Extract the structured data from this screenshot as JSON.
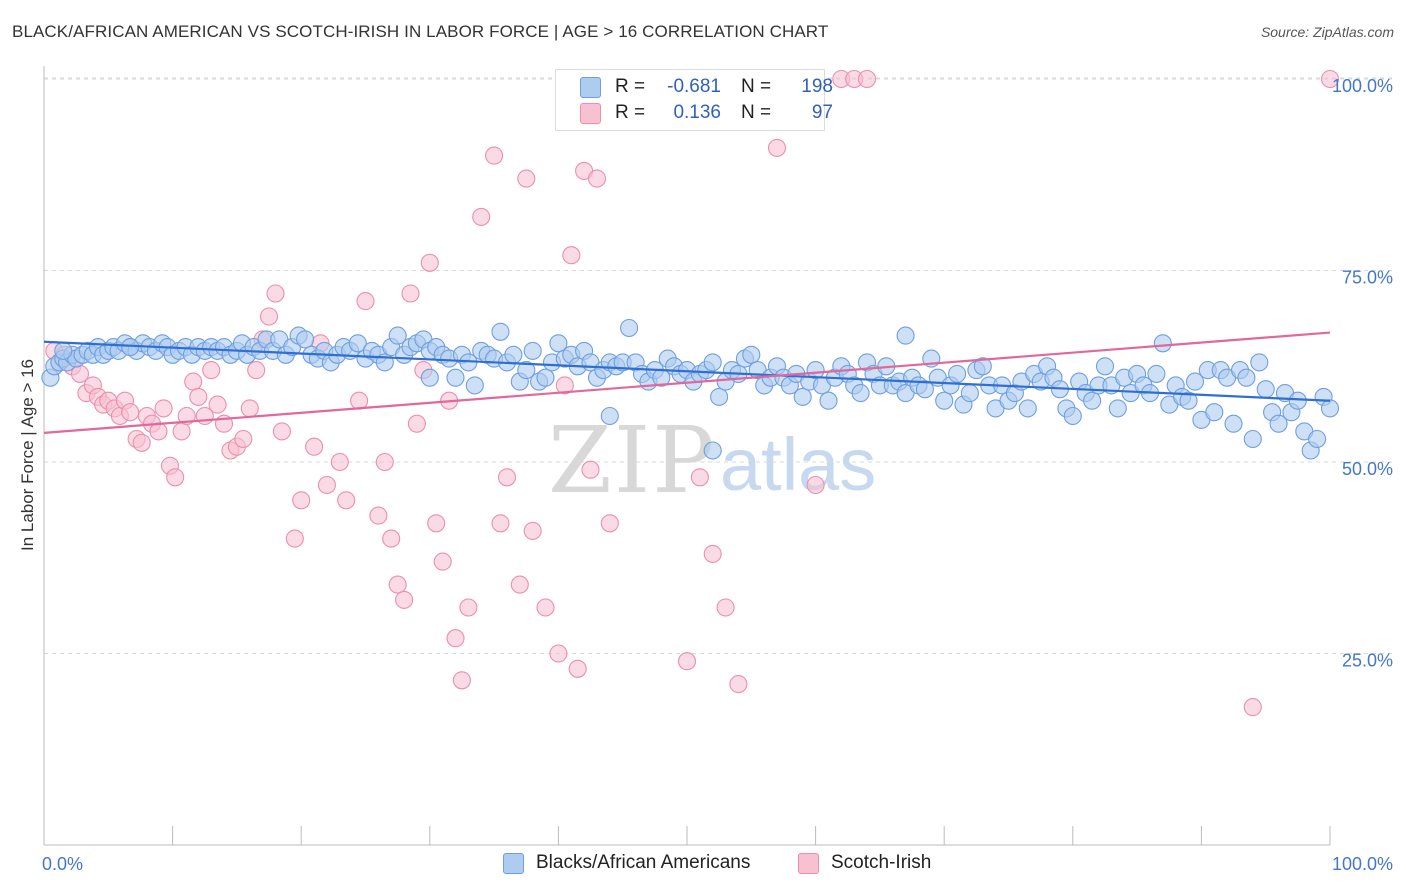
{
  "title": "BLACK/AFRICAN AMERICAN VS SCOTCH-IRISH IN LABOR FORCE | AGE > 16 CORRELATION CHART",
  "source": "Source: ZipAtlas.com",
  "watermark": {
    "zip": "ZIP",
    "atlas": "atlas"
  },
  "colors": {
    "blue_fill": "#aecbf0",
    "blue_stroke": "#6f9fe0",
    "blue_line": "#2f6fd1",
    "pink_fill": "#f7c1d2",
    "pink_stroke": "#ec8fac",
    "pink_line": "#e2679a",
    "tick_text": "#4477cc",
    "grid": "#d9d9d9"
  },
  "legend": {
    "rows": [
      {
        "r_label": "R =",
        "r_value": "-0.681",
        "n_label": "N =",
        "n_value": "198",
        "color": "blue"
      },
      {
        "r_label": "R =",
        "r_value": "0.136",
        "n_label": "N =",
        "n_value": "97",
        "color": "pink"
      }
    ]
  },
  "bottom_legend": [
    {
      "label": "Blacks/African Americans",
      "color": "blue"
    },
    {
      "label": "Scotch-Irish",
      "color": "pink"
    }
  ],
  "chart_data": {
    "type": "scatter",
    "title": "BLACK/AFRICAN AMERICAN VS SCOTCH-IRISH IN LABOR FORCE | AGE > 16 CORRELATION CHART",
    "xlabel": "",
    "ylabel": "In Labor Force | Age > 16",
    "xlim": [
      0,
      100
    ],
    "ylim": [
      0,
      103
    ],
    "x_tick_labels": [
      "0.0%",
      "100.0%"
    ],
    "y_ticks": [
      25,
      50,
      75,
      100
    ],
    "y_tick_labels": [
      "25.0%",
      "50.0%",
      "75.0%",
      "100.0%"
    ],
    "grid": true,
    "series": [
      {
        "name": "Blacks/African Americans",
        "color": "blue",
        "R": -0.681,
        "N": 198,
        "trend": {
          "x": [
            0,
            100
          ],
          "y": [
            65.7,
            58.0
          ]
        },
        "points": [
          [
            0.5,
            61
          ],
          [
            0.8,
            62.5
          ],
          [
            1.2,
            63
          ],
          [
            1.5,
            63.5
          ],
          [
            1.8,
            63
          ],
          [
            2.2,
            64
          ],
          [
            2.5,
            63.5
          ],
          [
            3,
            64
          ],
          [
            3.4,
            64.5
          ],
          [
            3.8,
            64
          ],
          [
            4.2,
            65
          ],
          [
            4.6,
            64
          ],
          [
            5,
            64.5
          ],
          [
            5.4,
            65
          ],
          [
            5.8,
            64.5
          ],
          [
            6.3,
            65.5
          ],
          [
            6.7,
            65
          ],
          [
            7.2,
            64.5
          ],
          [
            7.7,
            65.5
          ],
          [
            8.2,
            65
          ],
          [
            8.7,
            64.5
          ],
          [
            9.2,
            65.5
          ],
          [
            9.6,
            65
          ],
          [
            10,
            64
          ],
          [
            10.5,
            64.5
          ],
          [
            11,
            65
          ],
          [
            11.5,
            64
          ],
          [
            12,
            65
          ],
          [
            12.5,
            64.5
          ],
          [
            13,
            65
          ],
          [
            13.5,
            64.5
          ],
          [
            14,
            65
          ],
          [
            14.5,
            64
          ],
          [
            15,
            64.5
          ],
          [
            15.4,
            65.5
          ],
          [
            15.8,
            64
          ],
          [
            16.3,
            65
          ],
          [
            16.8,
            64.5
          ],
          [
            17.3,
            66
          ],
          [
            17.8,
            64.5
          ],
          [
            18.3,
            66
          ],
          [
            18.8,
            64
          ],
          [
            19.3,
            65
          ],
          [
            19.8,
            66.5
          ],
          [
            20.3,
            66
          ],
          [
            20.8,
            64
          ],
          [
            21.3,
            63.5
          ],
          [
            21.8,
            64.5
          ],
          [
            22.3,
            63
          ],
          [
            22.8,
            64
          ],
          [
            23.3,
            65
          ],
          [
            23.8,
            64.5
          ],
          [
            24.4,
            65.5
          ],
          [
            25,
            63.5
          ],
          [
            25.5,
            64.5
          ],
          [
            26,
            64
          ],
          [
            26.5,
            63
          ],
          [
            27,
            65
          ],
          [
            27.5,
            66.5
          ],
          [
            28,
            64
          ],
          [
            28.5,
            65
          ],
          [
            29,
            65.5
          ],
          [
            29.5,
            66
          ],
          [
            30,
            64.5
          ],
          [
            30.5,
            65
          ],
          [
            31,
            64
          ],
          [
            31.5,
            63.5
          ],
          [
            32,
            61
          ],
          [
            32.5,
            64
          ],
          [
            33,
            63
          ],
          [
            33.5,
            60
          ],
          [
            34,
            64.5
          ],
          [
            34.5,
            64
          ],
          [
            35,
            63.5
          ],
          [
            35.5,
            67
          ],
          [
            36,
            63
          ],
          [
            36.5,
            64
          ],
          [
            37,
            60.5
          ],
          [
            37.5,
            62
          ],
          [
            38,
            64.5
          ],
          [
            38.5,
            60.5
          ],
          [
            39,
            61
          ],
          [
            39.5,
            63
          ],
          [
            40,
            65.5
          ],
          [
            40.5,
            63.5
          ],
          [
            41,
            64
          ],
          [
            41.5,
            62.5
          ],
          [
            42,
            64.5
          ],
          [
            42.5,
            63
          ],
          [
            43,
            61
          ],
          [
            43.5,
            62
          ],
          [
            44,
            63
          ],
          [
            44.5,
            62.5
          ],
          [
            45,
            63
          ],
          [
            45.5,
            67.5
          ],
          [
            46,
            63
          ],
          [
            46.5,
            61.5
          ],
          [
            47,
            60.5
          ],
          [
            47.5,
            62
          ],
          [
            48,
            61
          ],
          [
            48.5,
            63.5
          ],
          [
            49,
            62.5
          ],
          [
            49.5,
            61.5
          ],
          [
            50,
            62
          ],
          [
            50.5,
            60.5
          ],
          [
            51,
            61.5
          ],
          [
            51.5,
            62
          ],
          [
            52,
            63
          ],
          [
            52.5,
            58.5
          ],
          [
            53,
            60.5
          ],
          [
            53.5,
            62
          ],
          [
            54,
            61.5
          ],
          [
            54.5,
            63.5
          ],
          [
            55,
            64
          ],
          [
            55.5,
            62
          ],
          [
            56,
            60
          ],
          [
            56.5,
            61
          ],
          [
            57,
            62.5
          ],
          [
            57.5,
            61
          ],
          [
            58,
            60
          ],
          [
            58.5,
            61.5
          ],
          [
            59,
            58.5
          ],
          [
            59.5,
            60.5
          ],
          [
            60,
            62
          ],
          [
            60.5,
            60
          ],
          [
            61,
            58
          ],
          [
            61.5,
            61
          ],
          [
            62,
            62.5
          ],
          [
            62.5,
            61.5
          ],
          [
            63,
            60
          ],
          [
            63.5,
            59
          ],
          [
            64,
            63
          ],
          [
            64.5,
            61.5
          ],
          [
            65,
            60
          ],
          [
            65.5,
            62.5
          ],
          [
            66,
            60
          ],
          [
            66.5,
            60.5
          ],
          [
            67,
            59
          ],
          [
            67.5,
            61
          ],
          [
            68,
            60
          ],
          [
            68.5,
            59.5
          ],
          [
            69,
            63.5
          ],
          [
            69.5,
            61
          ],
          [
            70,
            58
          ],
          [
            70.5,
            60
          ],
          [
            71,
            61.5
          ],
          [
            71.5,
            57.5
          ],
          [
            72,
            59
          ],
          [
            72.5,
            62
          ],
          [
            73,
            62.5
          ],
          [
            73.5,
            60
          ],
          [
            74,
            57
          ],
          [
            74.5,
            60
          ],
          [
            75,
            58
          ],
          [
            75.5,
            59
          ],
          [
            76,
            60.5
          ],
          [
            76.5,
            57
          ],
          [
            77,
            61.5
          ],
          [
            77.5,
            60.5
          ],
          [
            78,
            62.5
          ],
          [
            78.5,
            61
          ],
          [
            79,
            59.5
          ],
          [
            79.5,
            57
          ],
          [
            80,
            56
          ],
          [
            80.5,
            60.5
          ],
          [
            81,
            59
          ],
          [
            81.5,
            58
          ],
          [
            82,
            60
          ],
          [
            82.5,
            62.5
          ],
          [
            83,
            60
          ],
          [
            83.5,
            57
          ],
          [
            84,
            61
          ],
          [
            84.5,
            59
          ],
          [
            85,
            61.5
          ],
          [
            85.5,
            60
          ],
          [
            86,
            59
          ],
          [
            86.5,
            61.5
          ],
          [
            87,
            65.5
          ],
          [
            87.5,
            57.5
          ],
          [
            88,
            60
          ],
          [
            88.5,
            58.5
          ],
          [
            89,
            58
          ],
          [
            89.5,
            60.5
          ],
          [
            90,
            55.5
          ],
          [
            90.5,
            62
          ],
          [
            91,
            56.5
          ],
          [
            91.5,
            62
          ],
          [
            92,
            61
          ],
          [
            92.5,
            55
          ],
          [
            93,
            62
          ],
          [
            93.5,
            61
          ],
          [
            94,
            53
          ],
          [
            94.5,
            63
          ],
          [
            95,
            59.5
          ],
          [
            95.5,
            56.5
          ],
          [
            96,
            55
          ],
          [
            96.5,
            59
          ],
          [
            97,
            56.5
          ],
          [
            97.5,
            58
          ],
          [
            98,
            54
          ],
          [
            98.5,
            51.5
          ],
          [
            99,
            53
          ],
          [
            99.5,
            58.5
          ],
          [
            100,
            57
          ],
          [
            44,
            56
          ],
          [
            52,
            51.5
          ],
          [
            67,
            66.5
          ],
          [
            1.5,
            64.5
          ],
          [
            6.7,
            65
          ],
          [
            30,
            61
          ]
        ]
      },
      {
        "name": "Scotch-Irish",
        "color": "pink",
        "R": 0.136,
        "N": 97,
        "trend": {
          "x": [
            0,
            100
          ],
          "y": [
            53.8,
            66.9
          ]
        },
        "points": [
          [
            0.8,
            64.5
          ],
          [
            1.2,
            63
          ],
          [
            1.6,
            64
          ],
          [
            2.2,
            62.5
          ],
          [
            2.8,
            61.5
          ],
          [
            3.3,
            59
          ],
          [
            3.8,
            60
          ],
          [
            4.2,
            58.5
          ],
          [
            4.6,
            57.5
          ],
          [
            5,
            58
          ],
          [
            5.5,
            57
          ],
          [
            5.9,
            56
          ],
          [
            6.3,
            58
          ],
          [
            6.7,
            56.5
          ],
          [
            7.2,
            53
          ],
          [
            7.6,
            52.5
          ],
          [
            8,
            56
          ],
          [
            8.4,
            55
          ],
          [
            8.9,
            54
          ],
          [
            9.3,
            57
          ],
          [
            9.8,
            49.5
          ],
          [
            10.2,
            48
          ],
          [
            10.7,
            54
          ],
          [
            11.1,
            56
          ],
          [
            11.6,
            60.5
          ],
          [
            12,
            58.5
          ],
          [
            12.5,
            56
          ],
          [
            13,
            62
          ],
          [
            13.5,
            57.5
          ],
          [
            14,
            55
          ],
          [
            14.5,
            51.5
          ],
          [
            15,
            52
          ],
          [
            15.5,
            53
          ],
          [
            16,
            57
          ],
          [
            16.5,
            62
          ],
          [
            17,
            66
          ],
          [
            17.5,
            69
          ],
          [
            18,
            72
          ],
          [
            18.5,
            54
          ],
          [
            19.5,
            40
          ],
          [
            20,
            45
          ],
          [
            21,
            52
          ],
          [
            21.5,
            65.5
          ],
          [
            22,
            47
          ],
          [
            23,
            50
          ],
          [
            23.5,
            45
          ],
          [
            24.5,
            58
          ],
          [
            25,
            71
          ],
          [
            26,
            43
          ],
          [
            26.5,
            50
          ],
          [
            27,
            40
          ],
          [
            27.5,
            34
          ],
          [
            28,
            32
          ],
          [
            28.5,
            72
          ],
          [
            29,
            55
          ],
          [
            29.5,
            62
          ],
          [
            30,
            76
          ],
          [
            30.5,
            42
          ],
          [
            31,
            37
          ],
          [
            31.5,
            58
          ],
          [
            32,
            27
          ],
          [
            32.5,
            21.5
          ],
          [
            33,
            31
          ],
          [
            34,
            82
          ],
          [
            35,
            90
          ],
          [
            35.5,
            42
          ],
          [
            36,
            48
          ],
          [
            37,
            34
          ],
          [
            37.5,
            87
          ],
          [
            38,
            41
          ],
          [
            39,
            31
          ],
          [
            40,
            25
          ],
          [
            40.5,
            60
          ],
          [
            41,
            77
          ],
          [
            41.5,
            23
          ],
          [
            42,
            88
          ],
          [
            42.5,
            49
          ],
          [
            43,
            87
          ],
          [
            44,
            42
          ],
          [
            46,
            100
          ],
          [
            48,
            100
          ],
          [
            50,
            24
          ],
          [
            51,
            48
          ],
          [
            52,
            38
          ],
          [
            53,
            31
          ],
          [
            54,
            21
          ],
          [
            55,
            100
          ],
          [
            57,
            91
          ],
          [
            59,
            100
          ],
          [
            60,
            47
          ],
          [
            62,
            100
          ],
          [
            63,
            100
          ],
          [
            64,
            100
          ],
          [
            94,
            18
          ],
          [
            100,
            100
          ]
        ]
      }
    ]
  }
}
